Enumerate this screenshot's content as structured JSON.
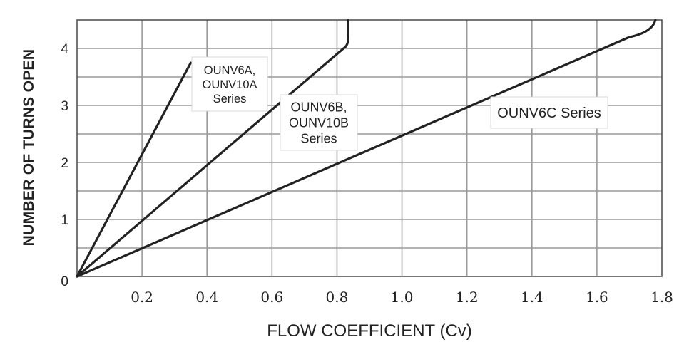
{
  "chart_data": {
    "type": "line",
    "xlabel": "FLOW COEFFICIENT (Cv)",
    "ylabel": "NUMBER OF TURNS OPEN",
    "xlim": [
      0,
      1.8
    ],
    "ylim": [
      0,
      4.5
    ],
    "x_ticks": [
      "0.2",
      "0.4",
      "0.6",
      "0.8",
      "1.0",
      "1.2",
      "1.4",
      "1.6",
      "1.8"
    ],
    "y_ticks": [
      "0",
      "1",
      "2",
      "3",
      "4"
    ],
    "grid": true,
    "series": [
      {
        "name": "OUNV6A, OUNV10A Series",
        "x": [
          0,
          0.35
        ],
        "y": [
          0,
          3.75
        ]
      },
      {
        "name": "OUNV6B, OUNV10B Series",
        "x": [
          0,
          0.82,
          0.835,
          0.835
        ],
        "y": [
          0,
          4.0,
          4.2,
          4.5
        ]
      },
      {
        "name": "OUNV6C Series",
        "x": [
          0,
          1.7,
          1.76,
          1.78
        ],
        "y": [
          0,
          4.2,
          4.35,
          4.5
        ]
      }
    ],
    "annotations": [
      {
        "lines": [
          "OUNV6A,",
          "OUNV10A",
          "Series"
        ]
      },
      {
        "lines": [
          "OUNV6B,",
          "OUNV10B",
          "Series"
        ]
      },
      {
        "lines": [
          "OUNV6C Series"
        ]
      }
    ]
  }
}
